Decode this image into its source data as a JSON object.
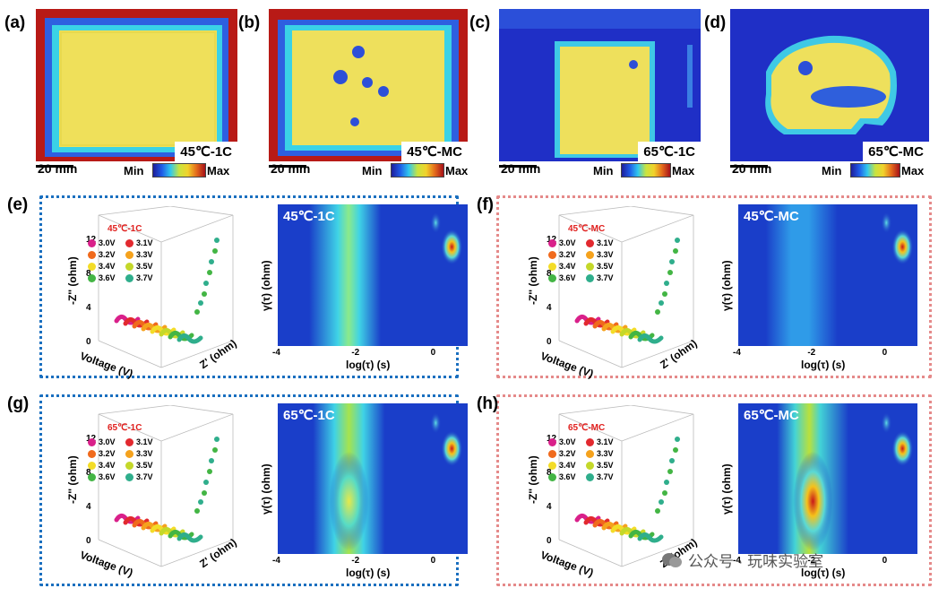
{
  "panels_top": [
    {
      "label": "(a)",
      "caption": "45℃-1C",
      "scale": "20 mm",
      "min": "Min",
      "max": "Max"
    },
    {
      "label": "(b)",
      "caption": "45℃-MC",
      "scale": "20 mm",
      "min": "Min",
      "max": "Max"
    },
    {
      "label": "(c)",
      "caption": "65℃-1C",
      "scale": "20 mm",
      "min": "Min",
      "max": "Max"
    },
    {
      "label": "(d)",
      "caption": "65℃-MC",
      "scale": "20 mm",
      "min": "Min",
      "max": "Max"
    }
  ],
  "panels_drt": [
    {
      "label": "(e)",
      "legend_title": "45℃-1C",
      "heat_title": "45℃-1C",
      "frame": "blue"
    },
    {
      "label": "(f)",
      "legend_title": "45℃-MC",
      "heat_title": "45℃-MC",
      "frame": "red"
    },
    {
      "label": "(g)",
      "legend_title": "65℃-1C",
      "heat_title": "65℃-1C",
      "frame": "blue"
    },
    {
      "label": "(h)",
      "legend_title": "65℃-MC",
      "heat_title": "65℃-MC",
      "frame": "red"
    }
  ],
  "common": {
    "nyquist_ylabel": "-Z'' (ohm)",
    "nyquist_xlabel": "Voltage (V)",
    "nyquist_zlabel": "Z' (ohm)",
    "nyquist_yticks": [
      "12",
      "8",
      "4",
      "0"
    ],
    "heat_xlabel": "log(τ)  (s)",
    "heat_ylabel": "γ(τ) (ohm)",
    "heat_xticks": [
      "-4",
      "-2",
      "0"
    ]
  },
  "legend": [
    {
      "label": "3.0V",
      "color": "#d9208a"
    },
    {
      "label": "3.1V",
      "color": "#e2292f"
    },
    {
      "label": "3.2V",
      "color": "#f06a1c"
    },
    {
      "label": "3.3V",
      "color": "#f5a21d"
    },
    {
      "label": "3.4V",
      "color": "#f3dc27"
    },
    {
      "label": "3.5V",
      "color": "#c4d82a"
    },
    {
      "label": "3.6V",
      "color": "#43b544"
    },
    {
      "label": "3.7V",
      "color": "#2fae8c"
    }
  ],
  "watermark": {
    "text": "公众号 · 玩味实验室",
    "icon": "wechat-icon"
  },
  "chart_data": [
    {
      "type": "heatmap",
      "title": "45℃-1C",
      "xlabel": "log(τ)  (s)",
      "ylabel": "γ(τ) (ohm)",
      "xlim": [
        -4,
        0.8
      ],
      "x_ticks": [
        -4,
        -2,
        0
      ],
      "peaks_log_tau": [
        -2.3,
        0.4
      ]
    },
    {
      "type": "heatmap",
      "title": "45℃-MC",
      "xlabel": "log(τ)  (s)",
      "ylabel": "γ(τ) (ohm)",
      "xlim": [
        -4,
        0.8
      ],
      "x_ticks": [
        -4,
        -2,
        0
      ],
      "peaks_log_tau": [
        -2.3,
        0.4
      ]
    },
    {
      "type": "heatmap",
      "title": "65℃-1C",
      "xlabel": "log(τ)  (s)",
      "ylabel": "γ(τ) (ohm)",
      "xlim": [
        -4,
        0.8
      ],
      "x_ticks": [
        -4,
        -2,
        0
      ],
      "peaks_log_tau": [
        -2.2,
        0.4
      ]
    },
    {
      "type": "heatmap",
      "title": "65℃-MC",
      "xlabel": "log(τ)  (s)",
      "ylabel": "γ(τ) (ohm)",
      "xlim": [
        -4,
        0.8
      ],
      "x_ticks": [
        -4,
        -2,
        0
      ],
      "peaks_log_tau": [
        -2.0,
        0.4
      ]
    }
  ]
}
